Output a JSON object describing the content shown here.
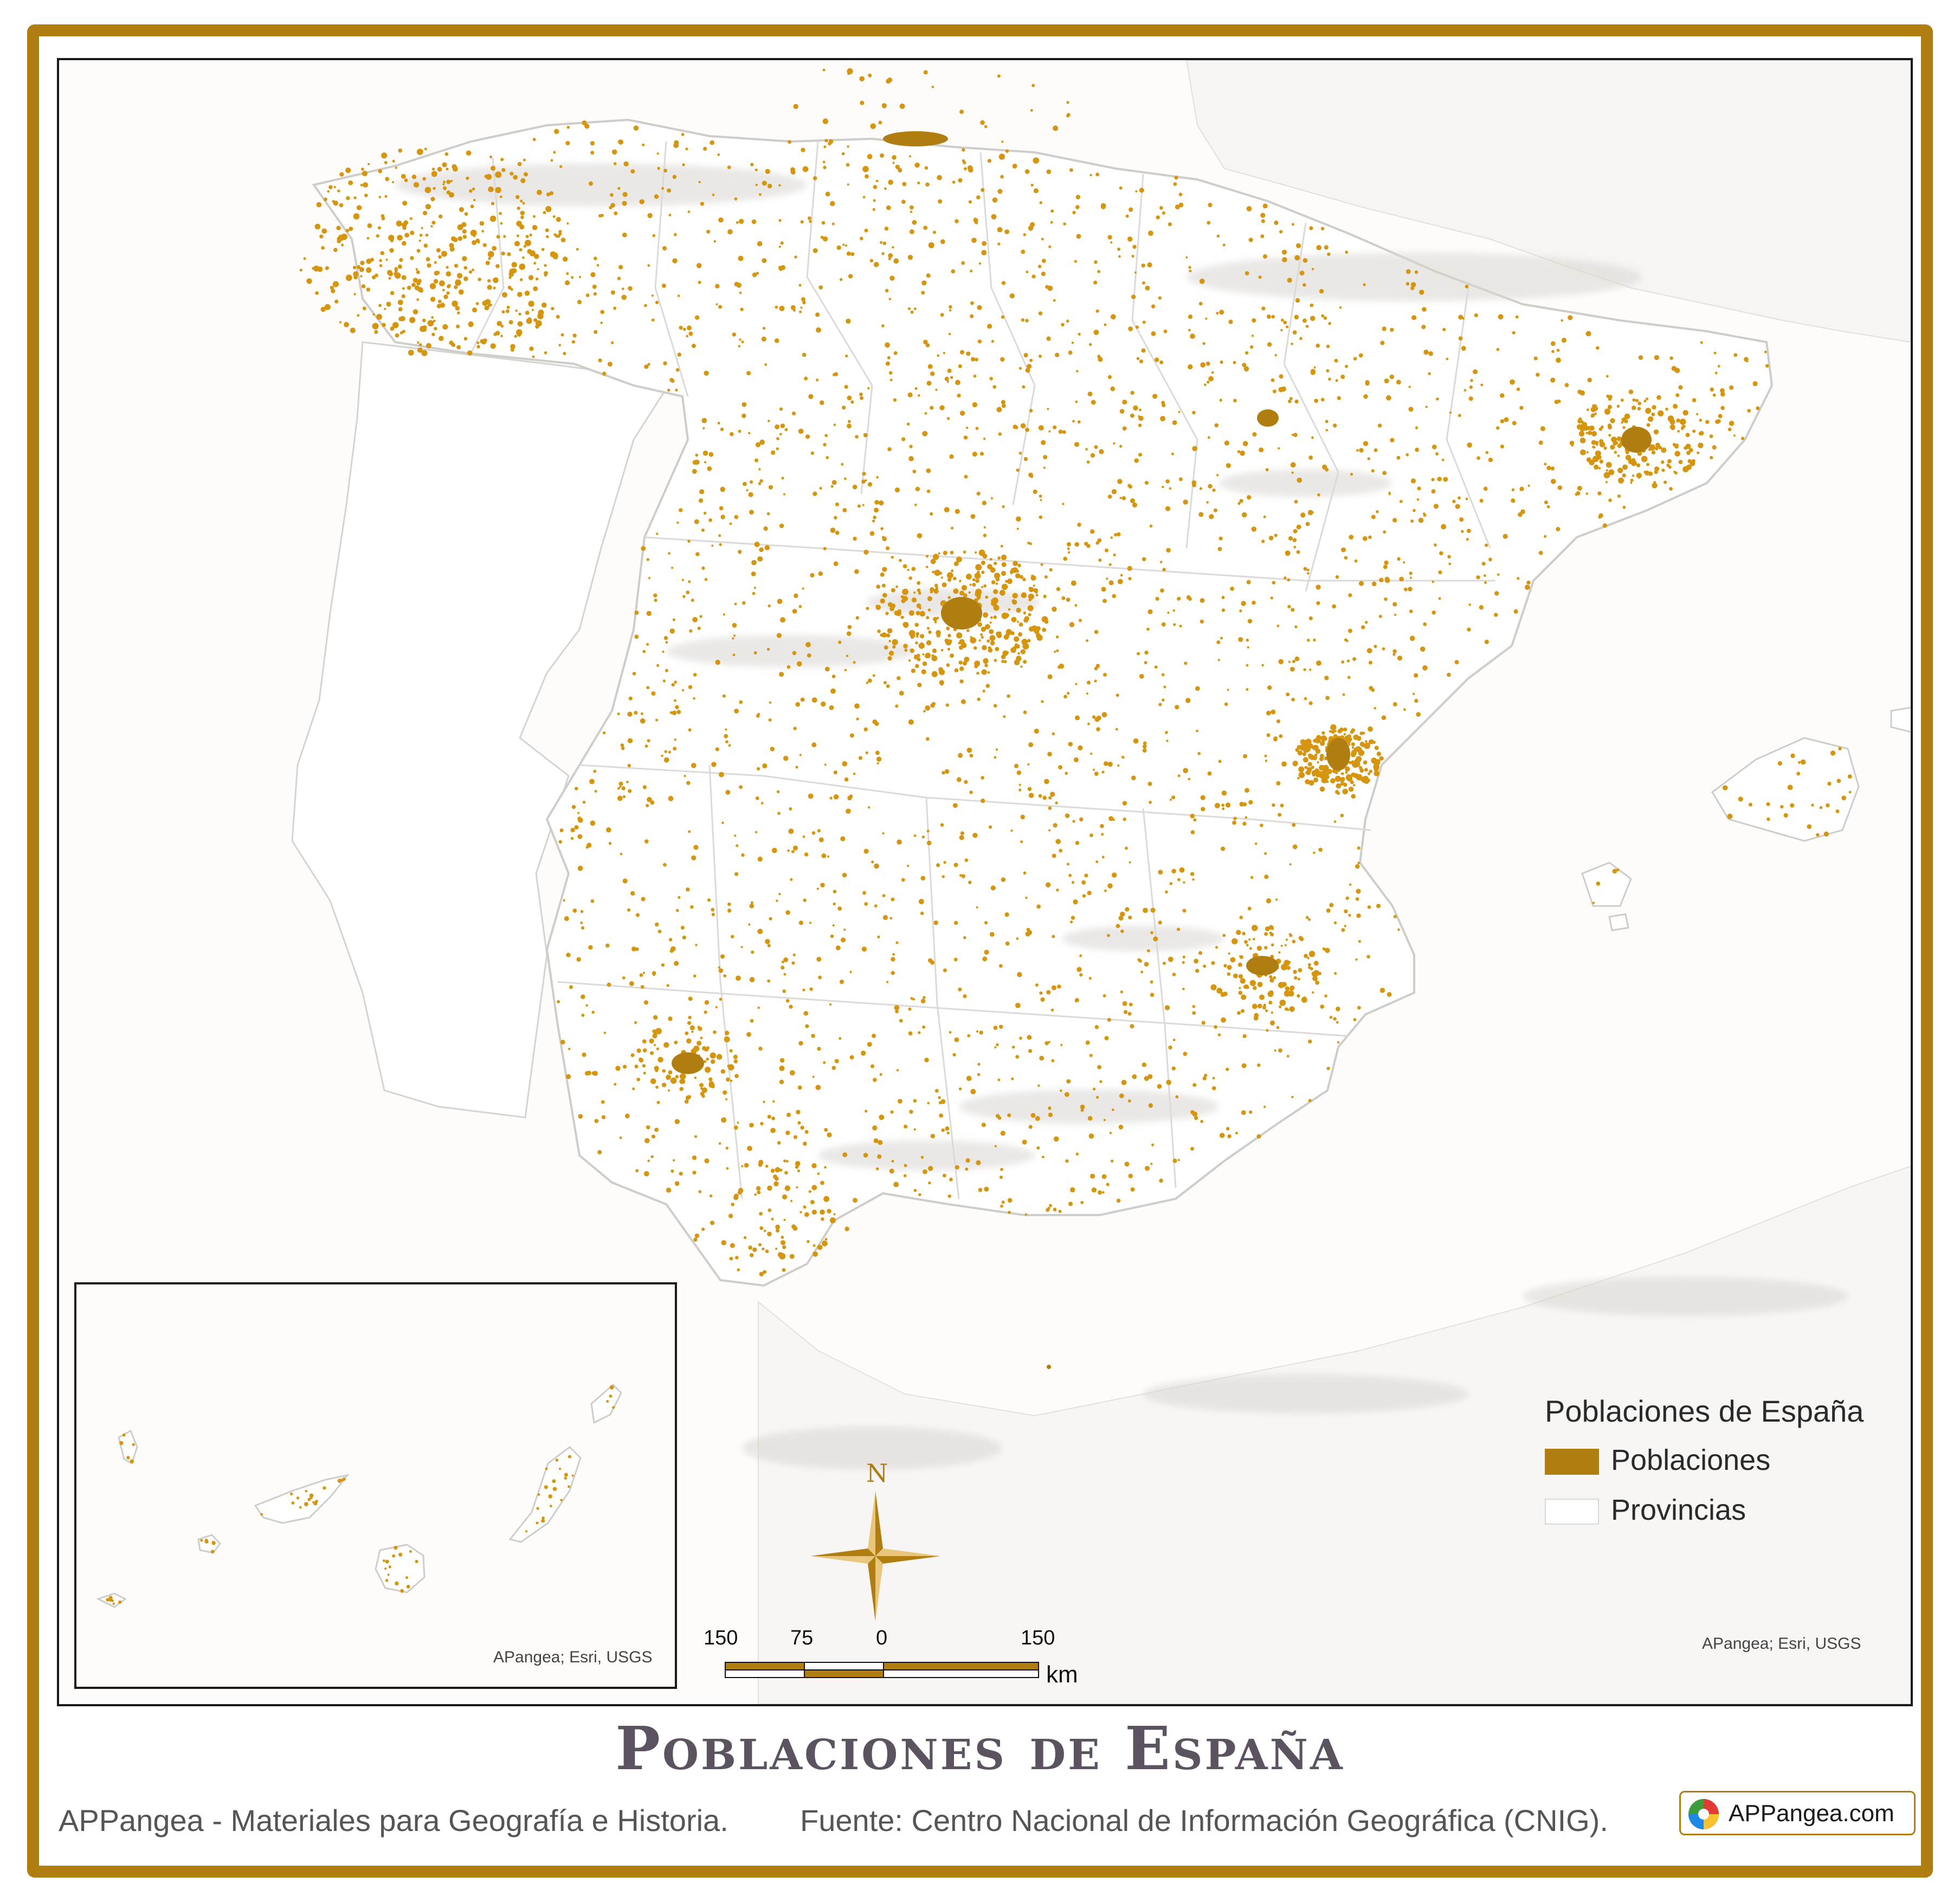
{
  "colors": {
    "frame": "#b07d10",
    "poblaciones": "#b07d10",
    "dot": "#d6950f",
    "provincias": "#ffffff",
    "land": "#ffffff",
    "title": "#5b5460"
  },
  "map": {
    "attribution": "APangea; Esri, USGS"
  },
  "inset": {
    "attribution": "APangea; Esri, USGS"
  },
  "legend": {
    "title": "Poblaciones de España",
    "items": [
      {
        "label": "Poblaciones",
        "color": "#b07d10"
      },
      {
        "label": "Provincias",
        "color": "#ffffff"
      }
    ]
  },
  "scale": {
    "ticks": [
      "150",
      "75",
      "0",
      "150"
    ],
    "unit": "km"
  },
  "north_arrow": {
    "label": "N",
    "icon": "compass-rose-icon"
  },
  "title": "Poblaciones de España",
  "footer": {
    "left": "APPangea - Materiales para Geografía e Historia.",
    "source": "Fuente: Centro Nacional de Información Geográfica (CNIG)."
  },
  "badge": {
    "text": "APPangea.com",
    "icon": "appangea-logo-icon"
  }
}
